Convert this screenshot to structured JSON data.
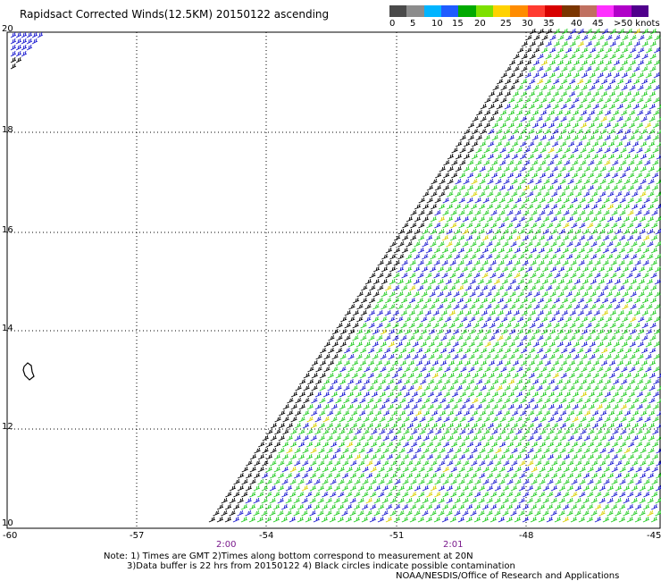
{
  "title": "Rapidsact Corrected Winds(12.5KM) 20150122 ascending",
  "legend": {
    "colors": [
      "#4a4a4a",
      "#8c8c8c",
      "#00b4ff",
      "#1f5cff",
      "#00aa00",
      "#7de000",
      "#ffd200",
      "#ff8c00",
      "#ff3b30",
      "#d80000",
      "#7a3500",
      "#c07060",
      "#ff30ff",
      "#b000c8",
      "#50008c"
    ],
    "labels": [
      "0",
      "5",
      "10",
      "15",
      "20",
      "25",
      "30",
      "35",
      "40",
      "45",
      ">50 knots"
    ]
  },
  "map": {
    "lat_labels": [
      "20",
      "18",
      "16",
      "14",
      "12",
      "10"
    ],
    "lon_labels": [
      "-60",
      "-57",
      "-54",
      "-51",
      "-48",
      "-45"
    ],
    "time_labels": [
      "2:00",
      "2:01"
    ]
  },
  "notes": [
    "Note: 1) Times are GMT 2)Times along bottom correspond to measurement at 20N",
    "3)Data buffer is 22 hrs from 20150122 4) Black circles indicate possible contamination"
  ],
  "credit": "NOAA/NESDIS/Office of Research and Applications"
}
